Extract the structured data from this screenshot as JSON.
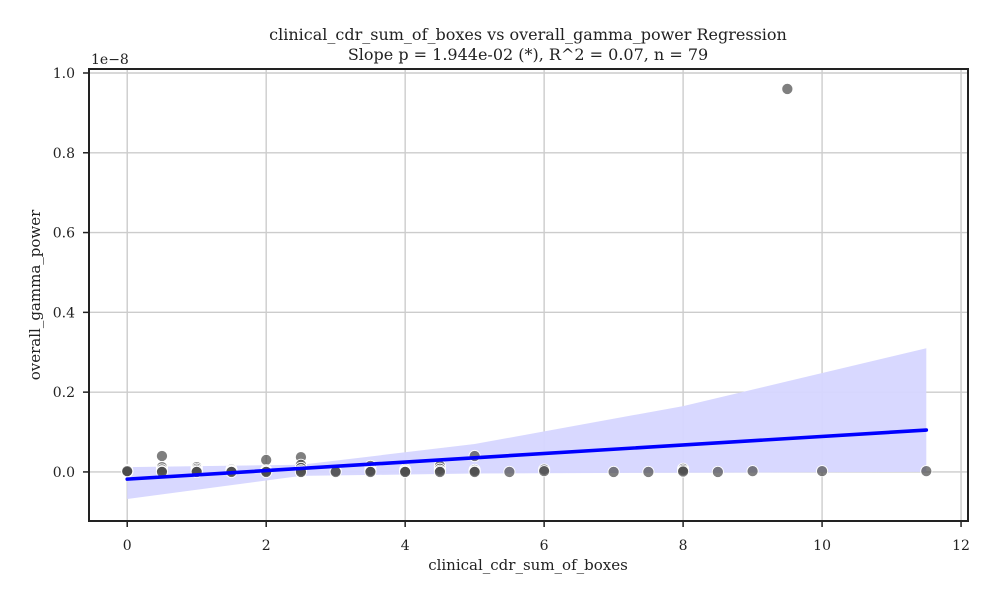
{
  "chart_data": {
    "type": "scatter",
    "title": "clinical_cdr_sum_of_boxes vs overall_gamma_power Regression",
    "subtitle": "Slope p = 1.944e-02 (*), R^2 = 0.07, n = 79",
    "xlabel": "clinical_cdr_sum_of_boxes",
    "ylabel": "overall_gamma_power",
    "y_offset_label": "1e−8",
    "xlim": [
      -0.55,
      12.1
    ],
    "ylim": [
      -0.123,
      1.01
    ],
    "xticks": [
      0,
      2,
      4,
      6,
      8,
      10,
      12
    ],
    "yticks": [
      0.0,
      0.2,
      0.4,
      0.6,
      0.8,
      1.0
    ],
    "xtick_labels": [
      "0",
      "2",
      "4",
      "6",
      "8",
      "10",
      "12"
    ],
    "ytick_labels": [
      "0.0",
      "0.2",
      "0.4",
      "0.6",
      "0.8",
      "1.0"
    ],
    "grid": true,
    "colors": {
      "points": "#4d4d4d",
      "regression_line": "#0000ff",
      "confidence_band": "#d6d6ff",
      "grid": "#cccccc",
      "axes": "#222222"
    },
    "regression": {
      "x_range": [
        0,
        11.5
      ],
      "y_at_x_start": -0.018,
      "y_at_x_end": 0.105,
      "band_lower": [
        [
          0,
          -0.068
        ],
        [
          2.5,
          -0.01
        ],
        [
          5,
          -0.004
        ],
        [
          8,
          -0.002
        ],
        [
          11.5,
          0.0
        ]
      ],
      "band_upper": [
        [
          0,
          0.012
        ],
        [
          2.5,
          0.018
        ],
        [
          5,
          0.07
        ],
        [
          8,
          0.165
        ],
        [
          11.5,
          0.31
        ]
      ]
    },
    "points": [
      {
        "x": 0,
        "y": 0.005
      },
      {
        "x": 0,
        "y": 0.003
      },
      {
        "x": 0,
        "y": 0.001
      },
      {
        "x": 0,
        "y": 0.0
      },
      {
        "x": 0,
        "y": 0.002
      },
      {
        "x": 0.5,
        "y": 0.04
      },
      {
        "x": 0.5,
        "y": 0.012
      },
      {
        "x": 0.5,
        "y": 0.006
      },
      {
        "x": 0.5,
        "y": 0.002
      },
      {
        "x": 0.5,
        "y": 0.0
      },
      {
        "x": 1,
        "y": 0.012
      },
      {
        "x": 1,
        "y": 0.008
      },
      {
        "x": 1,
        "y": 0.004
      },
      {
        "x": 1,
        "y": 0.001
      },
      {
        "x": 1,
        "y": 0.0
      },
      {
        "x": 1.5,
        "y": 0.006
      },
      {
        "x": 1.5,
        "y": 0.003
      },
      {
        "x": 1.5,
        "y": 0.001
      },
      {
        "x": 1.5,
        "y": 0.0
      },
      {
        "x": 2,
        "y": 0.03
      },
      {
        "x": 2,
        "y": 0.004
      },
      {
        "x": 2,
        "y": 0.002
      },
      {
        "x": 2,
        "y": 0.001
      },
      {
        "x": 2,
        "y": 0.0
      },
      {
        "x": 2.5,
        "y": 0.037
      },
      {
        "x": 2.5,
        "y": 0.018
      },
      {
        "x": 2.5,
        "y": 0.01
      },
      {
        "x": 2.5,
        "y": 0.004
      },
      {
        "x": 2.5,
        "y": 0.001
      },
      {
        "x": 2.5,
        "y": 0.0
      },
      {
        "x": 3,
        "y": 0.002
      },
      {
        "x": 3,
        "y": 0.0
      },
      {
        "x": 3.5,
        "y": 0.015
      },
      {
        "x": 3.5,
        "y": 0.005
      },
      {
        "x": 3.5,
        "y": 0.002
      },
      {
        "x": 3.5,
        "y": 0.0
      },
      {
        "x": 4,
        "y": 0.006
      },
      {
        "x": 4,
        "y": 0.003
      },
      {
        "x": 4,
        "y": 0.001
      },
      {
        "x": 4,
        "y": 0.0
      },
      {
        "x": 4.5,
        "y": 0.015
      },
      {
        "x": 4.5,
        "y": 0.008
      },
      {
        "x": 4.5,
        "y": 0.003
      },
      {
        "x": 4.5,
        "y": 0.0
      },
      {
        "x": 5,
        "y": 0.04
      },
      {
        "x": 5,
        "y": 0.005
      },
      {
        "x": 5,
        "y": 0.002
      },
      {
        "x": 5,
        "y": 0.0
      },
      {
        "x": 5.5,
        "y": 0.0
      },
      {
        "x": 6,
        "y": 0.006
      },
      {
        "x": 6,
        "y": 0.002
      },
      {
        "x": 7,
        "y": 0.0
      },
      {
        "x": 7.5,
        "y": 0.0
      },
      {
        "x": 8,
        "y": 0.008
      },
      {
        "x": 8,
        "y": 0.004
      },
      {
        "x": 8,
        "y": 0.001
      },
      {
        "x": 8.5,
        "y": 0.0
      },
      {
        "x": 9,
        "y": 0.002
      },
      {
        "x": 9.5,
        "y": 0.96
      },
      {
        "x": 10,
        "y": 0.002
      },
      {
        "x": 11.5,
        "y": 0.002
      }
    ]
  }
}
